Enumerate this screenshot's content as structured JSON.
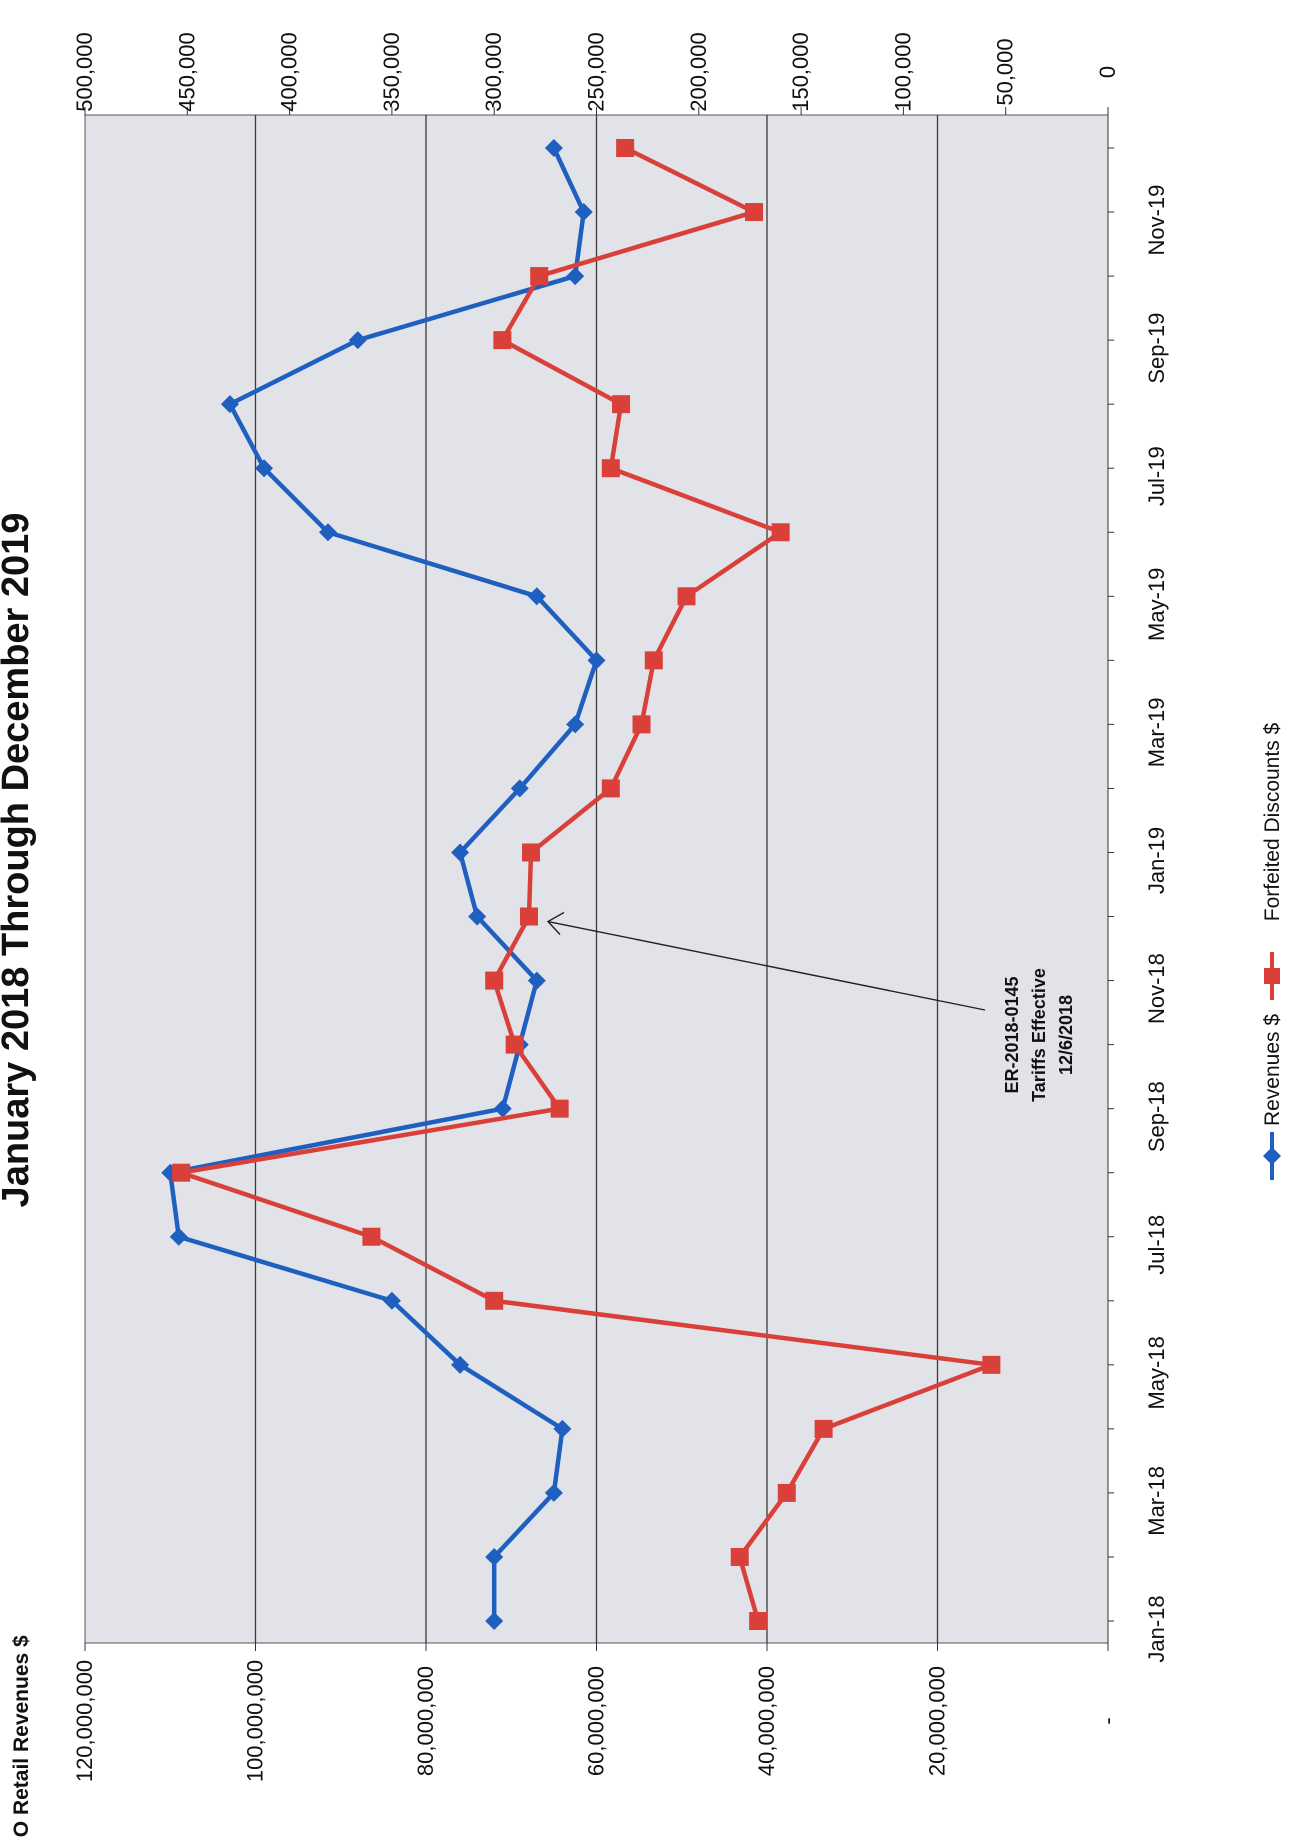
{
  "chart_data": {
    "type": "line",
    "title": "January 2018 Through December 2019",
    "primary_axis_title": "MO Retail Revenues $",
    "secondary_axis_title": "",
    "categories": [
      "Jan-18",
      "Feb-18",
      "Mar-18",
      "Apr-18",
      "May-18",
      "Jun-18",
      "Jul-18",
      "Aug-18",
      "Sep-18",
      "Oct-18",
      "Nov-18",
      "Dec-18",
      "Jan-19",
      "Feb-19",
      "Mar-19",
      "Apr-19",
      "May-19",
      "Jun-19",
      "Jul-19",
      "Aug-19",
      "Sep-19",
      "Oct-19",
      "Nov-19",
      "Dec-19"
    ],
    "category_tick_labels": [
      "Jan-18",
      "Mar-18",
      "May-18",
      "Jul-18",
      "Sep-18",
      "Nov-18",
      "Jan-19",
      "Mar-19",
      "May-19",
      "Jul-19",
      "Sep-19",
      "Nov-19"
    ],
    "primary_axis": {
      "min": 0,
      "max": 120000000,
      "step": 20000000,
      "tick_labels": [
        "-",
        "20,000,000",
        "40,000,000",
        "60,000,000",
        "80,000,000",
        "100,000,000",
        "120,000,000"
      ]
    },
    "secondary_axis": {
      "min": 0,
      "max": 500000,
      "step": 50000,
      "tick_labels": [
        "0",
        "50,000",
        "100,000",
        "150,000",
        "200,000",
        "250,000",
        "300,000",
        "350,000",
        "400,000",
        "450,000",
        "500,000"
      ]
    },
    "series": [
      {
        "name": "Revenues $",
        "axis": "primary",
        "color": "#1f5fbf",
        "marker": "diamond",
        "values": [
          72000000,
          72000000,
          65000000,
          64000000,
          76000000,
          84000000,
          109000000,
          110000000,
          71000000,
          69000000,
          67000000,
          74000000,
          76000000,
          69000000,
          62500000,
          60000000,
          67000000,
          91500000,
          99000000,
          103000000,
          88000000,
          62500000,
          61500000,
          65000000
        ]
      },
      {
        "name": "Forfeited Discounts $",
        "axis": "secondary",
        "color": "#d9403a",
        "marker": "square",
        "values": [
          171000,
          180000,
          157000,
          139000,
          57000,
          300000,
          360000,
          453000,
          268000,
          290000,
          300000,
          283000,
          282000,
          243000,
          228000,
          222000,
          206000,
          160000,
          243000,
          238000,
          296000,
          278000,
          173000,
          236000
        ]
      }
    ],
    "annotation": {
      "lines": [
        "ER-2018-0145",
        "Tariffs Effective",
        "12/6/2018"
      ],
      "points_to": "Dec-18"
    },
    "grid": true,
    "legend": "bottom"
  }
}
